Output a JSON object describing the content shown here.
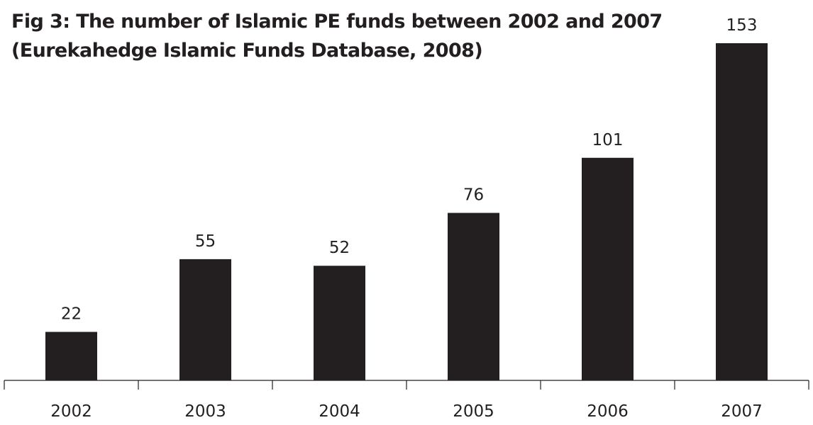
{
  "colors": {
    "bar": "#231f20",
    "text": "#231f20",
    "background": "#ffffff"
  },
  "chart_data": {
    "type": "bar",
    "title": "Fig 3: The number of Islamic PE funds between 2002 and 2007",
    "subtitle": "(Eurekahedge Islamic Funds Database, 2008)",
    "xlabel": "",
    "ylabel": "",
    "categories": [
      "2002",
      "2003",
      "2004",
      "2005",
      "2006",
      "2007"
    ],
    "values": [
      22,
      55,
      52,
      76,
      101,
      153
    ],
    "data_labels": [
      "22",
      "55",
      "52",
      "76",
      "101",
      "153"
    ],
    "ylim": [
      0,
      153
    ],
    "grid": false,
    "legend": "none"
  }
}
